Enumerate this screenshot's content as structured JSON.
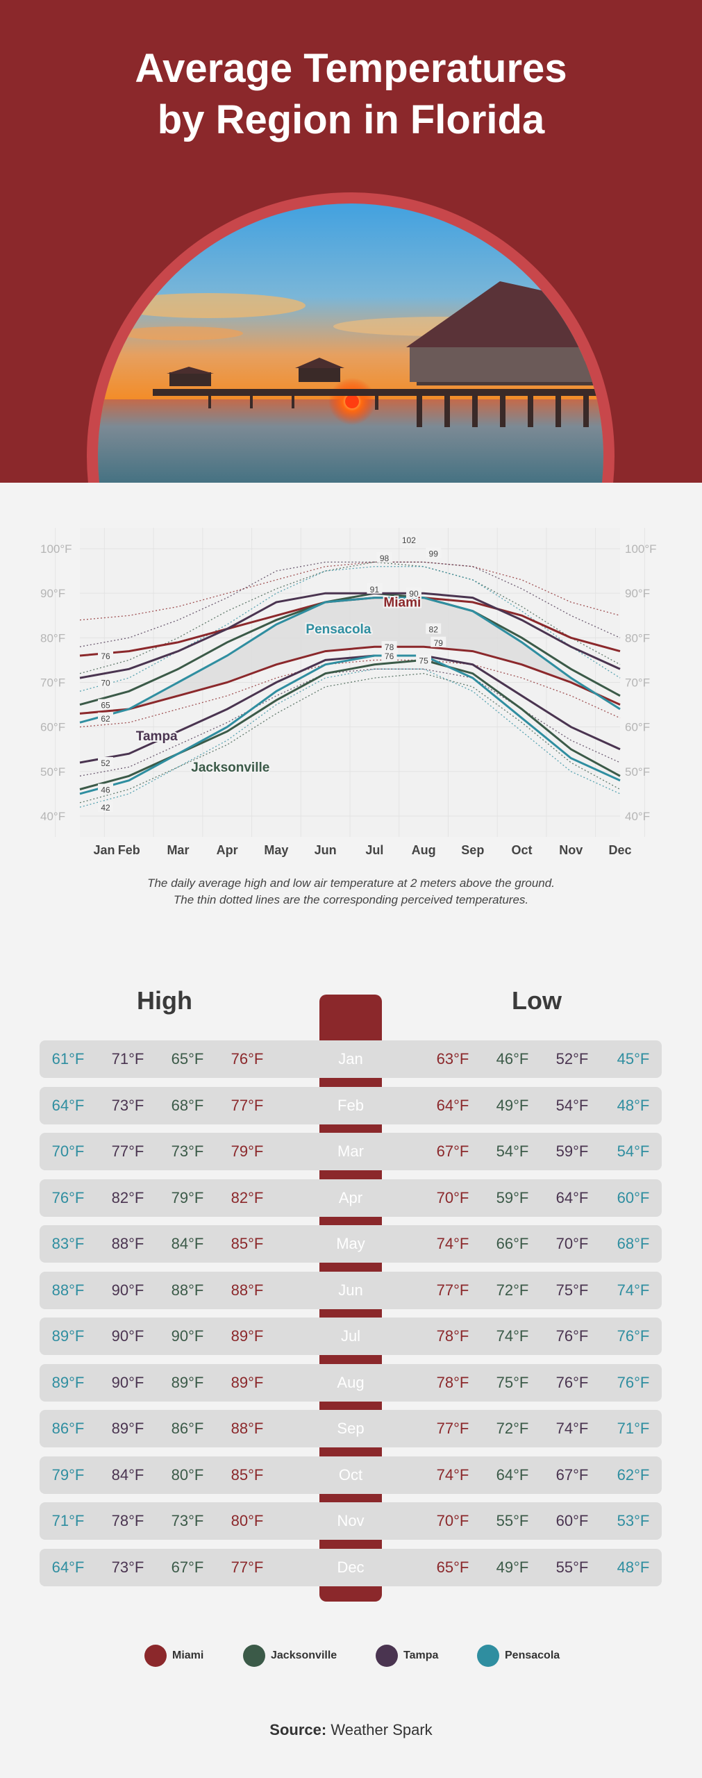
{
  "title": {
    "line1": "Average Temperatures",
    "line2": "by Region in Florida"
  },
  "colors": {
    "miami": "#8b282b",
    "jacksonville": "#3b5a48",
    "tampa": "#4a3450",
    "pensacola": "#2f8ea0",
    "header": "#8b282b"
  },
  "chart_data": {
    "type": "line",
    "categories": [
      "Jan",
      "Feb",
      "Mar",
      "Apr",
      "May",
      "Jun",
      "Jul",
      "Aug",
      "Sep",
      "Oct",
      "Nov",
      "Dec"
    ],
    "y_ticks": [
      "100°F",
      "90°F",
      "80°F",
      "70°F",
      "60°F",
      "50°F",
      "40°F"
    ],
    "ylim": [
      40,
      100
    ],
    "series": [
      {
        "name": "Miami",
        "key": "miami",
        "type": "high",
        "values": [
          76,
          77,
          79,
          82,
          85,
          88,
          89,
          89,
          88,
          85,
          80,
          77
        ]
      },
      {
        "name": "Miami",
        "key": "miami",
        "type": "low",
        "values": [
          63,
          64,
          67,
          70,
          74,
          77,
          78,
          78,
          77,
          74,
          70,
          65
        ]
      },
      {
        "name": "Jacksonville",
        "key": "jacksonville",
        "type": "high",
        "values": [
          65,
          68,
          73,
          79,
          84,
          88,
          90,
          89,
          86,
          80,
          73,
          67
        ]
      },
      {
        "name": "Jacksonville",
        "key": "jacksonville",
        "type": "low",
        "values": [
          46,
          49,
          54,
          59,
          66,
          72,
          74,
          75,
          72,
          64,
          55,
          49
        ]
      },
      {
        "name": "Tampa",
        "key": "tampa",
        "type": "high",
        "values": [
          71,
          73,
          77,
          82,
          88,
          90,
          90,
          90,
          89,
          84,
          78,
          73
        ]
      },
      {
        "name": "Tampa",
        "key": "tampa",
        "type": "low",
        "values": [
          52,
          54,
          59,
          64,
          70,
          75,
          76,
          76,
          74,
          67,
          60,
          55
        ]
      },
      {
        "name": "Pensacola",
        "key": "pensacola",
        "type": "high",
        "values": [
          61,
          64,
          70,
          76,
          83,
          88,
          89,
          89,
          86,
          79,
          71,
          64
        ]
      },
      {
        "name": "Pensacola",
        "key": "pensacola",
        "type": "low",
        "values": [
          45,
          48,
          54,
          60,
          68,
          74,
          76,
          76,
          71,
          62,
          53,
          48
        ]
      }
    ],
    "point_labels": [
      {
        "month": 0,
        "value": 76,
        "text": "76",
        "key": "miami"
      },
      {
        "month": 0,
        "value": 70,
        "text": "70",
        "key": "tampa"
      },
      {
        "month": 0,
        "value": 65,
        "text": "65",
        "key": "jacksonville"
      },
      {
        "month": 0,
        "value": 62,
        "text": "62",
        "key": "miami"
      },
      {
        "month": 0,
        "value": 52,
        "text": "52",
        "key": "tampa"
      },
      {
        "month": 0,
        "value": 46,
        "text": "46",
        "key": "jacksonville"
      },
      {
        "month": 0,
        "value": 42,
        "text": "42",
        "key": "jacksonville"
      },
      {
        "month": 6,
        "value": 91,
        "text": "91",
        "key": "jacksonville"
      },
      {
        "month": 6.8,
        "value": 90,
        "text": "90",
        "key": "miami"
      },
      {
        "month": 6.7,
        "value": 102,
        "text": "102",
        "key": "tampa"
      },
      {
        "month": 6.2,
        "value": 98,
        "text": "98",
        "key": "tampa"
      },
      {
        "month": 7.2,
        "value": 99,
        "text": "99",
        "key": "miami"
      },
      {
        "month": 7.2,
        "value": 82,
        "text": "82",
        "key": "miami"
      },
      {
        "month": 6.3,
        "value": 78,
        "text": "78",
        "key": "tampa"
      },
      {
        "month": 7.3,
        "value": 79,
        "text": "79",
        "key": "miami"
      },
      {
        "month": 6.3,
        "value": 76,
        "text": "76",
        "key": "tampa"
      },
      {
        "month": 7.0,
        "value": 75,
        "text": "75",
        "key": "jacksonville"
      }
    ],
    "series_labels": [
      {
        "text": "Miami",
        "month": 6.0,
        "value": 87,
        "key": "miami"
      },
      {
        "text": "Pensacola",
        "month": 4.7,
        "value": 81,
        "key": "pensacola"
      },
      {
        "text": "Tampa",
        "month": 1.0,
        "value": 57,
        "key": "tampa"
      },
      {
        "text": "Jacksonville",
        "month": 2.5,
        "value": 50,
        "key": "jacksonville"
      }
    ],
    "caption": {
      "line1": "The daily average high and low air temperature at 2 meters above the ground.",
      "line2": "The thin dotted lines are the corresponding perceived temperatures."
    }
  },
  "table": {
    "high_title": "High",
    "low_title": "Low",
    "rows": [
      {
        "month": "Jan",
        "high": {
          "pensacola": "61°F",
          "tampa": "71°F",
          "jacksonville": "65°F",
          "miami": "76°F"
        },
        "low": {
          "miami": "63°F",
          "jacksonville": "46°F",
          "tampa": "52°F",
          "pensacola": "45°F"
        }
      },
      {
        "month": "Feb",
        "high": {
          "pensacola": "64°F",
          "tampa": "73°F",
          "jacksonville": "68°F",
          "miami": "77°F"
        },
        "low": {
          "miami": "64°F",
          "jacksonville": "49°F",
          "tampa": "54°F",
          "pensacola": "48°F"
        }
      },
      {
        "month": "Mar",
        "high": {
          "pensacola": "70°F",
          "tampa": "77°F",
          "jacksonville": "73°F",
          "miami": "79°F"
        },
        "low": {
          "miami": "67°F",
          "jacksonville": "54°F",
          "tampa": "59°F",
          "pensacola": "54°F"
        }
      },
      {
        "month": "Apr",
        "high": {
          "pensacola": "76°F",
          "tampa": "82°F",
          "jacksonville": "79°F",
          "miami": "82°F"
        },
        "low": {
          "miami": "70°F",
          "jacksonville": "59°F",
          "tampa": "64°F",
          "pensacola": "60°F"
        }
      },
      {
        "month": "May",
        "high": {
          "pensacola": "83°F",
          "tampa": "88°F",
          "jacksonville": "84°F",
          "miami": "85°F"
        },
        "low": {
          "miami": "74°F",
          "jacksonville": "66°F",
          "tampa": "70°F",
          "pensacola": "68°F"
        }
      },
      {
        "month": "Jun",
        "high": {
          "pensacola": "88°F",
          "tampa": "90°F",
          "jacksonville": "88°F",
          "miami": "88°F"
        },
        "low": {
          "miami": "77°F",
          "jacksonville": "72°F",
          "tampa": "75°F",
          "pensacola": "74°F"
        }
      },
      {
        "month": "Jul",
        "high": {
          "pensacola": "89°F",
          "tampa": "90°F",
          "jacksonville": "90°F",
          "miami": "89°F"
        },
        "low": {
          "miami": "78°F",
          "jacksonville": "74°F",
          "tampa": "76°F",
          "pensacola": "76°F"
        }
      },
      {
        "month": "Aug",
        "high": {
          "pensacola": "89°F",
          "tampa": "90°F",
          "jacksonville": "89°F",
          "miami": "89°F"
        },
        "low": {
          "miami": "78°F",
          "jacksonville": "75°F",
          "tampa": "76°F",
          "pensacola": "76°F"
        }
      },
      {
        "month": "Sep",
        "high": {
          "pensacola": "86°F",
          "tampa": "89°F",
          "jacksonville": "86°F",
          "miami": "88°F"
        },
        "low": {
          "miami": "77°F",
          "jacksonville": "72°F",
          "tampa": "74°F",
          "pensacola": "71°F"
        }
      },
      {
        "month": "Oct",
        "high": {
          "pensacola": "79°F",
          "tampa": "84°F",
          "jacksonville": "80°F",
          "miami": "85°F"
        },
        "low": {
          "miami": "74°F",
          "jacksonville": "64°F",
          "tampa": "67°F",
          "pensacola": "62°F"
        }
      },
      {
        "month": "Nov",
        "high": {
          "pensacola": "71°F",
          "tampa": "78°F",
          "jacksonville": "73°F",
          "miami": "80°F"
        },
        "low": {
          "miami": "70°F",
          "jacksonville": "55°F",
          "tampa": "60°F",
          "pensacola": "53°F"
        }
      },
      {
        "month": "Dec",
        "high": {
          "pensacola": "64°F",
          "tampa": "73°F",
          "jacksonville": "67°F",
          "miami": "77°F"
        },
        "low": {
          "miami": "65°F",
          "jacksonville": "49°F",
          "tampa": "55°F",
          "pensacola": "48°F"
        }
      }
    ]
  },
  "legend": [
    {
      "label": "Miami",
      "key": "miami"
    },
    {
      "label": "Jacksonville",
      "key": "jacksonville"
    },
    {
      "label": "Tampa",
      "key": "tampa"
    },
    {
      "label": "Pensacola",
      "key": "pensacola"
    }
  ],
  "source": {
    "label": "Source:",
    "value": "Weather Spark"
  }
}
